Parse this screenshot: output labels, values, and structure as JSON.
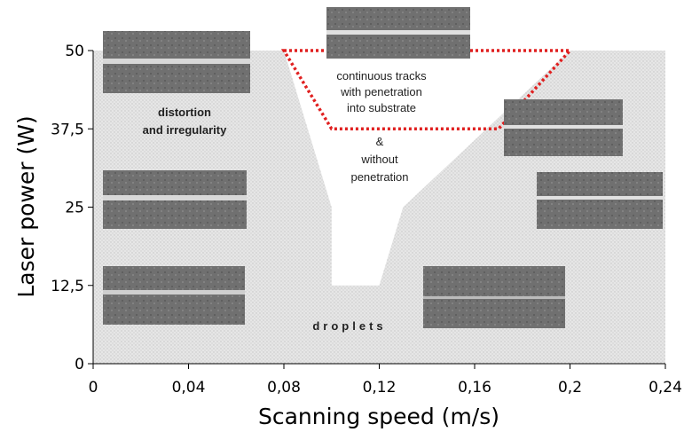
{
  "chart_data": {
    "type": "region-map",
    "xlabel": "Scanning speed (m/s)",
    "ylabel": "Laser power (W)",
    "xlim": [
      0,
      0.24
    ],
    "ylim": [
      0,
      50
    ],
    "xticks": [
      0,
      {
        "value": 0.04,
        "label": "0,04"
      },
      {
        "value": 0.08,
        "label": "0,08"
      },
      {
        "value": 0.12,
        "label": "0,12"
      },
      {
        "value": 0.16,
        "label": "0,16"
      },
      {
        "value": 0.2,
        "label": "0,2"
      },
      {
        "value": 0.24,
        "label": "0,24"
      }
    ],
    "yticks": [
      0,
      {
        "value": 12.5,
        "label": "12,5"
      },
      25,
      {
        "value": 37.5,
        "label": "37,5"
      },
      50
    ],
    "stable_region": {
      "x": [
        0.08,
        0.1,
        0.1,
        0.12,
        0.13,
        0.2
      ],
      "y": [
        50,
        25,
        12.5,
        12.5,
        25,
        50
      ]
    },
    "penetration_region": {
      "x": [
        0.08,
        0.2,
        0.17,
        0.1
      ],
      "y": [
        50,
        50,
        37.5,
        37.5
      ],
      "color": "#e02020"
    },
    "labels": {
      "distortion": [
        "distortion",
        "and irregularity"
      ],
      "continuous": [
        "continuous tracks",
        "with penetration",
        "into substrate"
      ],
      "without": [
        "&",
        "without",
        "penetration"
      ],
      "droplets": "droplets"
    }
  }
}
